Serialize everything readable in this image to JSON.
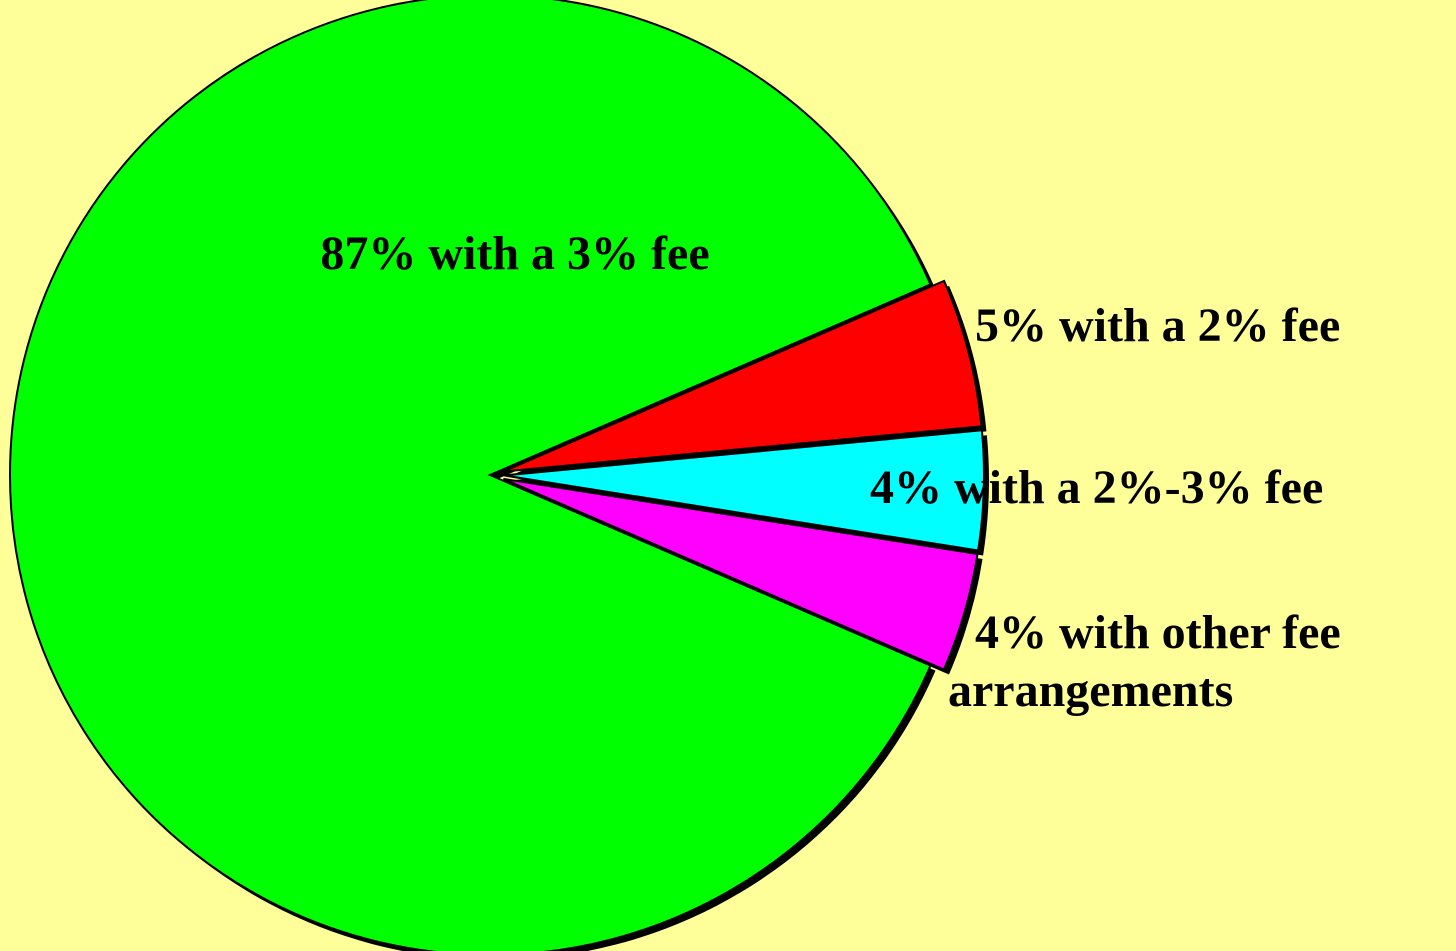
{
  "chart_data": {
    "type": "pie",
    "categories": [
      [
        "87% with a 3% fee"
      ],
      [
        "5% with a 2% fee"
      ],
      [
        "4% with a 2%-3% fee"
      ],
      [
        "4% with other fee",
        "arrangements"
      ]
    ],
    "values": [
      87,
      5,
      4,
      4
    ],
    "colors": [
      "#00ff00",
      "#ff0000",
      "#00ffff",
      "#ff00ff"
    ]
  }
}
